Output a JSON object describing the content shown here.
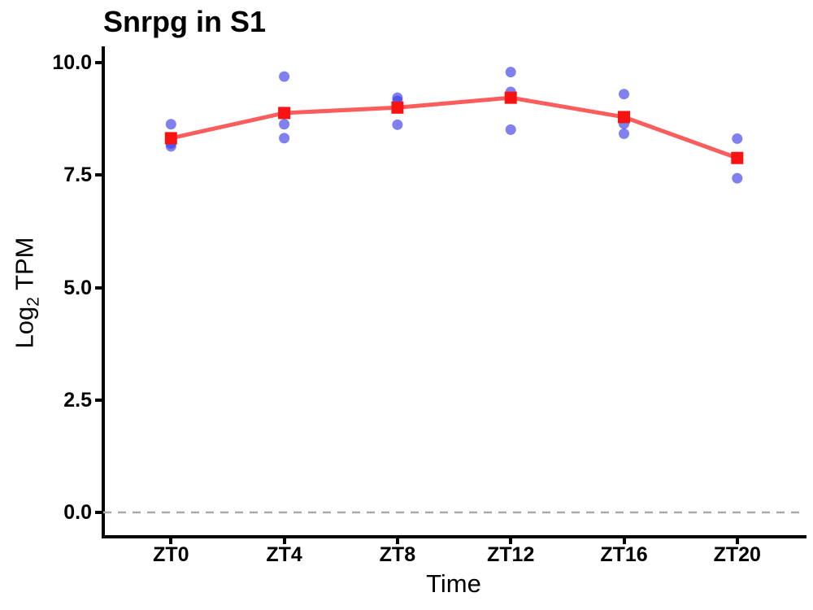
{
  "title": "Snrpg in S1",
  "axes": {
    "x_label": "Time",
    "y_label_prefix": "Log",
    "y_label_sub": "2",
    "y_label_suffix": " TPM"
  },
  "chart_data": {
    "type": "scatter",
    "title": "Snrpg in S1",
    "xlabel": "Time",
    "ylabel": "Log2 TPM",
    "categories": [
      "ZT0",
      "ZT4",
      "ZT8",
      "ZT12",
      "ZT16",
      "ZT20"
    ],
    "series": [
      {
        "name": "replicate-points",
        "type": "scatter",
        "values": [
          [
            8.63,
            8.2,
            8.14
          ],
          [
            9.69,
            8.63,
            8.32
          ],
          [
            9.22,
            9.15,
            8.62
          ],
          [
            9.79,
            9.35,
            8.51
          ],
          [
            9.3,
            8.64,
            8.42
          ],
          [
            8.31,
            7.9,
            7.43
          ]
        ]
      },
      {
        "name": "mean-line",
        "type": "line",
        "values": [
          8.32,
          8.88,
          9.0,
          9.22,
          8.79,
          7.88
        ]
      }
    ],
    "y_ticks": [
      0.0,
      2.5,
      5.0,
      7.5,
      10.0
    ],
    "y_tick_labels": [
      "0.0",
      "2.5",
      "5.0",
      "7.5",
      "10.0"
    ],
    "ylim": [
      -0.55,
      10.35
    ],
    "hline": {
      "y": 0.0,
      "style": "dashed"
    },
    "grid": false,
    "legend": "none",
    "colors": {
      "points": "#3C3CE6",
      "points_opacity": 0.65,
      "mean_marker": "#F81212",
      "mean_line": "#FA1E1E",
      "mean_line_opacity": 0.72,
      "zero_line": "#ABABAB",
      "axis": "#000000"
    }
  }
}
